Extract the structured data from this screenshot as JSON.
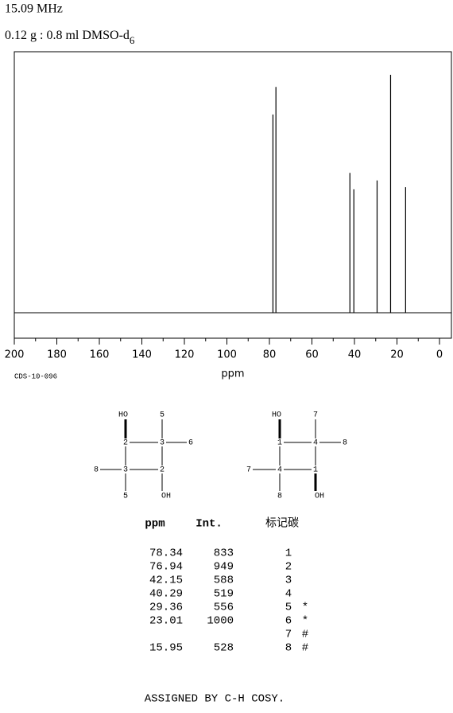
{
  "header": {
    "frequency": "15.09 MHz",
    "solvent": "0.12 g : 0.8 ml DMSO-d",
    "solvent_subscript": "6"
  },
  "chart_data": {
    "type": "spectrum",
    "xlabel": "ppm",
    "annotation": "CDS-10-096",
    "x": [
      78.34,
      76.94,
      42.15,
      40.29,
      29.36,
      23.01,
      15.95
    ],
    "values": [
      833,
      949,
      588,
      519,
      556,
      1000,
      528
    ],
    "color": "#000000",
    "xlim": [
      200,
      -5.6
    ],
    "xticks": [
      200,
      180,
      160,
      140,
      120,
      100,
      80,
      60,
      40,
      20,
      0
    ],
    "xticks_minor": [
      190,
      170,
      150,
      130,
      110,
      90,
      70,
      50,
      30,
      10
    ]
  },
  "structures": [
    {
      "labels": [
        "HO",
        "5",
        "2",
        "3",
        "6",
        "8",
        "3",
        "2",
        "5",
        "OH"
      ]
    },
    {
      "labels": [
        "HO",
        "7",
        "1",
        "4",
        "8",
        "7",
        "4",
        "1",
        "8",
        "OH"
      ]
    }
  ],
  "table": {
    "header": [
      "ppm",
      "Int.",
      "标记碳"
    ],
    "rows": [
      [
        "78.34",
        "833",
        "1",
        null
      ],
      [
        "76.94",
        "949",
        "2",
        null
      ],
      [
        "42.15",
        "588",
        "3",
        null
      ],
      [
        "40.29",
        "519",
        "4",
        null
      ],
      [
        "29.36",
        "556",
        "5",
        "*"
      ],
      [
        "23.01",
        "1000",
        "6",
        "*"
      ],
      [
        null,
        null,
        "7",
        "#"
      ],
      [
        "15.95",
        "528",
        "8",
        "#"
      ]
    ]
  },
  "footer": "ASSIGNED BY C-H COSY."
}
